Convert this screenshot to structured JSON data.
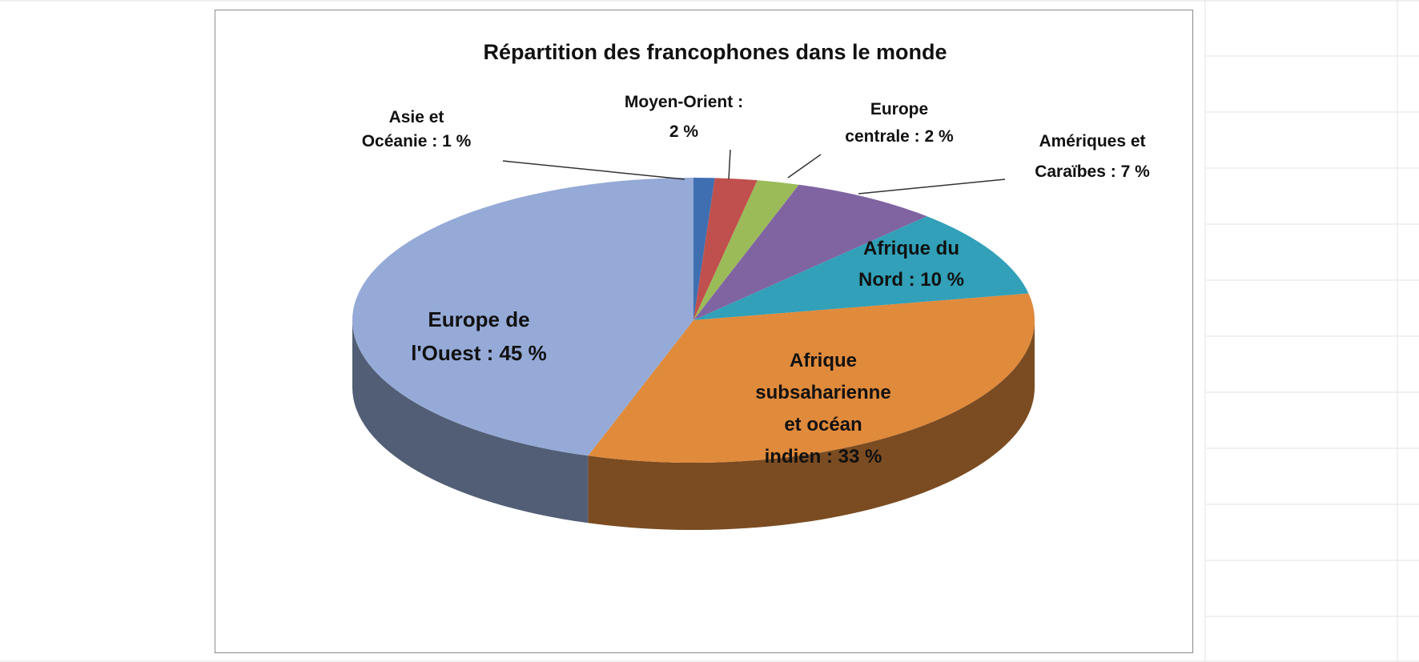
{
  "chart_data": {
    "type": "pie",
    "title": "Répartition des francophones dans le monde",
    "slices": [
      {
        "label_lines": [
          "Asie et",
          "Océanie : 1 %"
        ],
        "value": 1,
        "color": "#3f6fb1"
      },
      {
        "label_lines": [
          "Moyen-Orient :",
          "2 %"
        ],
        "value": 2,
        "color": "#c0504d"
      },
      {
        "label_lines": [
          "Europe",
          "centrale : 2 %"
        ],
        "value": 2,
        "color": "#9bbb59"
      },
      {
        "label_lines": [
          "Amériques et",
          "Caraïbes : 7 %"
        ],
        "value": 7,
        "color": "#8064a2"
      },
      {
        "label_lines": [
          "Afrique du",
          "Nord : 10 %"
        ],
        "value": 10,
        "color": "#31a0b8"
      },
      {
        "label_lines": [
          "Afrique",
          "subsaharienne",
          "et océan",
          "indien : 33 %"
        ],
        "value": 33,
        "color": "#e08a3c"
      },
      {
        "label_lines": [
          "Europe de",
          "l'Ouest : 45 %"
        ],
        "value": 45,
        "color": "#95aad6"
      }
    ],
    "start_angle_deg": 0,
    "direction": "clockwise",
    "style": "3d-pie",
    "legend": "none"
  }
}
